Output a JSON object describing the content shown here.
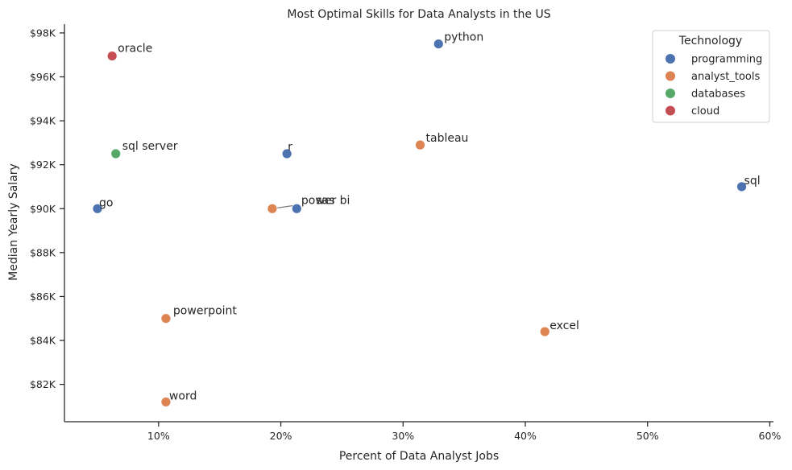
{
  "chart_data": {
    "type": "scatter",
    "title": "Most Optimal Skills for Data Analysts in the US",
    "xlabel": "Percent of Data Analyst Jobs",
    "ylabel": "Median Yearly Salary",
    "xlim": [
      2.3,
      60.3
    ],
    "ylim": [
      80300,
      98400
    ],
    "x_ticks": [
      10,
      20,
      30,
      40,
      50,
      60
    ],
    "x_tick_labels": [
      "10%",
      "20%",
      "30%",
      "40%",
      "50%",
      "60%"
    ],
    "y_ticks": [
      82000,
      84000,
      86000,
      88000,
      90000,
      92000,
      94000,
      96000,
      98000
    ],
    "y_tick_labels": [
      "$82K",
      "$84K",
      "$86K",
      "$88K",
      "$90K",
      "$92K",
      "$94K",
      "$96K",
      "$98K"
    ],
    "grid": false,
    "legend": {
      "title": "Technology",
      "placement": "top-right",
      "entries": [
        {
          "name": "programming",
          "color": "#4c72b0"
        },
        {
          "name": "analyst_tools",
          "color": "#dd8452"
        },
        {
          "name": "databases",
          "color": "#55a868"
        },
        {
          "name": "cloud",
          "color": "#c44e52"
        }
      ]
    },
    "points": [
      {
        "label": "python",
        "x": 32.9,
        "y": 97500,
        "category": "programming"
      },
      {
        "label": "oracle",
        "x": 6.2,
        "y": 96950,
        "category": "cloud"
      },
      {
        "label": "tableau",
        "x": 31.4,
        "y": 92900,
        "category": "analyst_tools"
      },
      {
        "label": "sql server",
        "x": 6.5,
        "y": 92500,
        "category": "databases"
      },
      {
        "label": "r",
        "x": 20.5,
        "y": 92500,
        "category": "programming"
      },
      {
        "label": "sql",
        "x": 57.7,
        "y": 91000,
        "category": "programming"
      },
      {
        "label": "go",
        "x": 5.0,
        "y": 90000,
        "category": "programming"
      },
      {
        "label": "power bi",
        "x": 19.3,
        "y": 90000,
        "category": "analyst_tools"
      },
      {
        "label": "sas",
        "x": 21.3,
        "y": 90000,
        "category": "programming"
      },
      {
        "label": "powerpoint",
        "x": 10.6,
        "y": 85000,
        "category": "analyst_tools"
      },
      {
        "label": "excel",
        "x": 41.6,
        "y": 84400,
        "category": "analyst_tools"
      },
      {
        "label": "word",
        "x": 10.6,
        "y": 81200,
        "category": "analyst_tools"
      }
    ]
  }
}
